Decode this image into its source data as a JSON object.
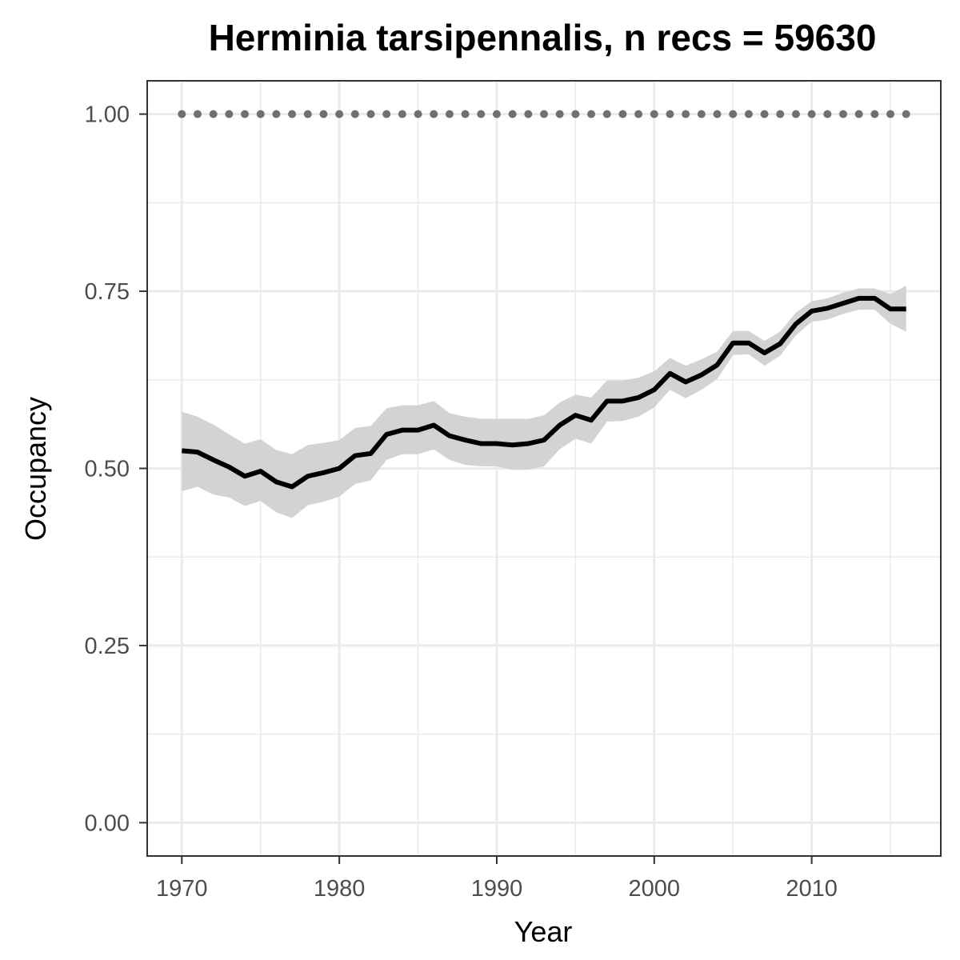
{
  "chart_data": {
    "type": "line",
    "title": "Herminia tarsipennalis, n recs = 59630",
    "xlabel": "Year",
    "ylabel": "Occupancy",
    "xlim": [
      1967.8,
      2018.2
    ],
    "ylim": [
      -0.047,
      1.047
    ],
    "x_ticks": [
      1970,
      1980,
      1990,
      2000,
      2010
    ],
    "x_tick_labels": [
      "1970",
      "1980",
      "1990",
      "2000",
      "2010"
    ],
    "y_ticks": [
      0.0,
      0.25,
      0.5,
      0.75,
      1.0
    ],
    "y_tick_labels": [
      "0.00",
      "0.25",
      "0.50",
      "0.75",
      "1.00"
    ],
    "grid": true,
    "colors": {
      "line": "#000000",
      "ribbon": "#d3d3d3",
      "dots": "#707070",
      "grid": "#ebebeb",
      "border": "#333333"
    },
    "x": [
      1970,
      1971,
      1972,
      1973,
      1974,
      1975,
      1976,
      1977,
      1978,
      1979,
      1980,
      1981,
      1982,
      1983,
      1984,
      1985,
      1986,
      1987,
      1988,
      1989,
      1990,
      1991,
      1992,
      1993,
      1994,
      1995,
      1996,
      1997,
      1998,
      1999,
      2000,
      2001,
      2002,
      2003,
      2004,
      2005,
      2006,
      2007,
      2008,
      2009,
      2010,
      2011,
      2012,
      2013,
      2014,
      2015,
      2016
    ],
    "series": [
      {
        "values": [
          0.525,
          0.523,
          0.512,
          0.502,
          0.489,
          0.496,
          0.481,
          0.474,
          0.489,
          0.494,
          0.5,
          0.518,
          0.521,
          0.548,
          0.554,
          0.554,
          0.561,
          0.546,
          0.54,
          0.535,
          0.535,
          0.533,
          0.535,
          0.54,
          0.561,
          0.575,
          0.568,
          0.595,
          0.595,
          0.6,
          0.611,
          0.634,
          0.622,
          0.632,
          0.646,
          0.677,
          0.677,
          0.663,
          0.676,
          0.704,
          0.722,
          0.726,
          0.733,
          0.74,
          0.74,
          0.725,
          0.725
        ],
        "lower": [
          0.468,
          0.474,
          0.463,
          0.459,
          0.447,
          0.454,
          0.438,
          0.43,
          0.448,
          0.453,
          0.46,
          0.478,
          0.483,
          0.512,
          0.52,
          0.52,
          0.527,
          0.512,
          0.505,
          0.503,
          0.503,
          0.498,
          0.498,
          0.503,
          0.527,
          0.542,
          0.535,
          0.566,
          0.567,
          0.573,
          0.586,
          0.611,
          0.599,
          0.611,
          0.626,
          0.66,
          0.661,
          0.645,
          0.659,
          0.688,
          0.707,
          0.71,
          0.718,
          0.724,
          0.724,
          0.704,
          0.693
        ],
        "upper": [
          0.58,
          0.573,
          0.562,
          0.548,
          0.535,
          0.541,
          0.526,
          0.52,
          0.533,
          0.536,
          0.54,
          0.557,
          0.56,
          0.585,
          0.589,
          0.589,
          0.595,
          0.578,
          0.573,
          0.57,
          0.57,
          0.57,
          0.57,
          0.575,
          0.593,
          0.604,
          0.6,
          0.624,
          0.624,
          0.628,
          0.637,
          0.656,
          0.645,
          0.654,
          0.665,
          0.694,
          0.694,
          0.68,
          0.693,
          0.72,
          0.736,
          0.74,
          0.748,
          0.754,
          0.754,
          0.746,
          0.758
        ]
      }
    ],
    "reference_dots": {
      "y": 1.0,
      "x": [
        1970,
        1971,
        1972,
        1973,
        1974,
        1975,
        1976,
        1977,
        1978,
        1979,
        1980,
        1981,
        1982,
        1983,
        1984,
        1985,
        1986,
        1987,
        1988,
        1989,
        1990,
        1991,
        1992,
        1993,
        1994,
        1995,
        1996,
        1997,
        1998,
        1999,
        2000,
        2001,
        2002,
        2003,
        2004,
        2005,
        2006,
        2007,
        2008,
        2009,
        2010,
        2011,
        2012,
        2013,
        2014,
        2015,
        2016
      ]
    }
  }
}
